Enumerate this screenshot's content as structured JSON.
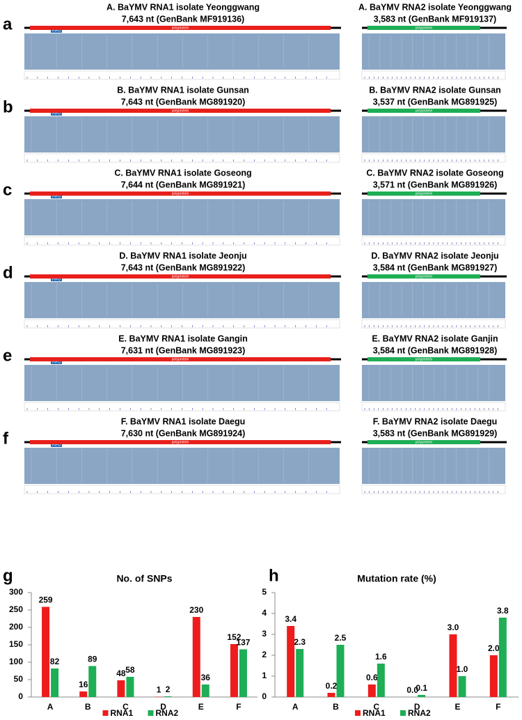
{
  "panels": [
    {
      "label": "a",
      "rna1": {
        "title": "A. BaYMV RNA1 isolate Yeonggwang",
        "subtitle": "7,643 nt (GenBank MF919136)",
        "genes": [
          "PIPO",
          "polyprotein"
        ]
      },
      "rna2": {
        "title": "A. BaYMV RNA2 isolate Yeonggwang",
        "subtitle": "3,583 nt (GenBank MF919137)",
        "genes": [
          "polyprotein"
        ]
      }
    },
    {
      "label": "b",
      "rna1": {
        "title": "B. BaYMV RNA1 isolate Gunsan",
        "subtitle": "7,643 nt (GenBank MG891920)",
        "genes": [
          "PIPO",
          "polyprotein"
        ]
      },
      "rna2": {
        "title": "B. BaYMV RNA2 isolate Gunsan",
        "subtitle": "3,537 nt (GenBank MG891925)",
        "genes": [
          "polyprotein"
        ]
      }
    },
    {
      "label": "c",
      "rna1": {
        "title": "C. BaYMV RNA1 isolate Goseong",
        "subtitle": "7,644 nt (GenBank MG891921)",
        "genes": [
          "PIPO",
          "polyprotein"
        ]
      },
      "rna2": {
        "title": "C. BaYMV RNA2 isolate Goseong",
        "subtitle": "3,571 nt (GenBank MG891926)",
        "genes": [
          "polyprotein"
        ]
      }
    },
    {
      "label": "d",
      "rna1": {
        "title": "D. BaYMV RNA1 isolate Jeonju",
        "subtitle": "7,643 nt (GenBank MG891922)",
        "genes": [
          "PIPO",
          "polyprotein"
        ]
      },
      "rna2": {
        "title": "D. BaYMV RNA2 isolate Jeonju",
        "subtitle": "3,584 nt (GenBank MG891927)",
        "genes": [
          "polyprotein"
        ]
      }
    },
    {
      "label": "e",
      "rna1": {
        "title": "E. BaYMV RNA1 isolate Gangin",
        "subtitle": "7,631 nt (GenBank MG891923)",
        "genes": [
          "PIPO",
          "polyprotein"
        ]
      },
      "rna2": {
        "title": "E. BaYMV RNA2 isolate Ganjin",
        "subtitle": "3,584 nt (GenBank MG891928)",
        "genes": [
          "polyprotein"
        ]
      }
    },
    {
      "label": "f",
      "rna1": {
        "title": "F. BaYMV RNA1 isolate Daegu",
        "subtitle": "7,630 nt (GenBank MG891924)",
        "genes": [
          "PIPO",
          "polyprotein"
        ]
      },
      "rna2": {
        "title": "F. BaYMV RNA2 isolate Daegu",
        "subtitle": "3,583 nt (GenBank MG891929)",
        "genes": [
          "polyprotein"
        ]
      }
    }
  ],
  "chart_labels": [
    "g",
    "h"
  ],
  "chart_data": [
    {
      "type": "bar",
      "title": "No. of SNPs",
      "categories": [
        "A",
        "B",
        "C",
        "D",
        "E",
        "F"
      ],
      "series": [
        {
          "name": "RNA1",
          "color": "#ee1c1c",
          "values": [
            259,
            16,
            48,
            1,
            230,
            152
          ]
        },
        {
          "name": "RNA2",
          "color": "#1eae55",
          "values": [
            82,
            89,
            58,
            2,
            36,
            137
          ]
        }
      ],
      "ylim": [
        0,
        300
      ],
      "yticks": [
        0,
        50,
        100,
        150,
        200,
        250,
        300
      ],
      "legend": "bottom"
    },
    {
      "type": "bar",
      "title": "Mutation rate (%)",
      "categories": [
        "A",
        "B",
        "C",
        "D",
        "E",
        "F"
      ],
      "series": [
        {
          "name": "RNA1",
          "color": "#ee1c1c",
          "values": [
            3.4,
            0.2,
            0.6,
            0.0,
            3.0,
            2.0
          ],
          "value_labels": [
            "3.4",
            "0.2",
            "0.6",
            "0.0",
            "3.0",
            "2.0"
          ]
        },
        {
          "name": "RNA2",
          "color": "#1eae55",
          "values": [
            2.3,
            2.5,
            1.6,
            0.1,
            1.0,
            3.8
          ],
          "value_labels": [
            "2.3",
            "2.5",
            "1.6",
            "0.1",
            "1.0",
            "3.8"
          ]
        }
      ],
      "ylim": [
        0,
        5
      ],
      "yticks": [
        0,
        1,
        2,
        3,
        4,
        5
      ],
      "legend": "bottom"
    }
  ]
}
